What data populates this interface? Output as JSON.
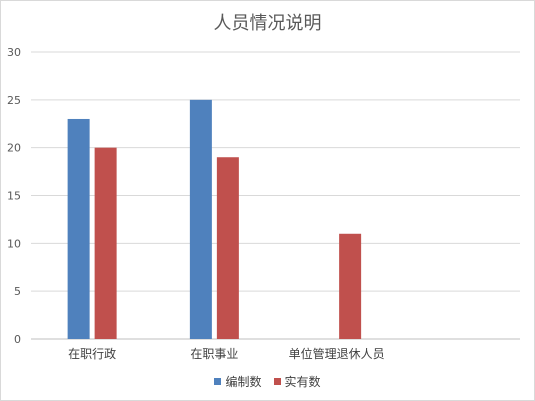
{
  "chart_data": {
    "type": "bar",
    "title": "人员情况说明",
    "xlabel": "",
    "ylabel": "",
    "categories": [
      "在职行政",
      "在职事业",
      "单位管理退休人员"
    ],
    "series": [
      {
        "name": "编制数",
        "values": [
          23,
          25,
          null
        ],
        "color": "#4f81bd"
      },
      {
        "name": "实有数",
        "values": [
          20,
          19,
          11
        ],
        "color": "#c0504d"
      }
    ],
    "ylim": [
      0,
      30
    ],
    "yticks": [
      0,
      5,
      10,
      15,
      20,
      25,
      30
    ],
    "grid": true,
    "legend_position": "bottom"
  }
}
